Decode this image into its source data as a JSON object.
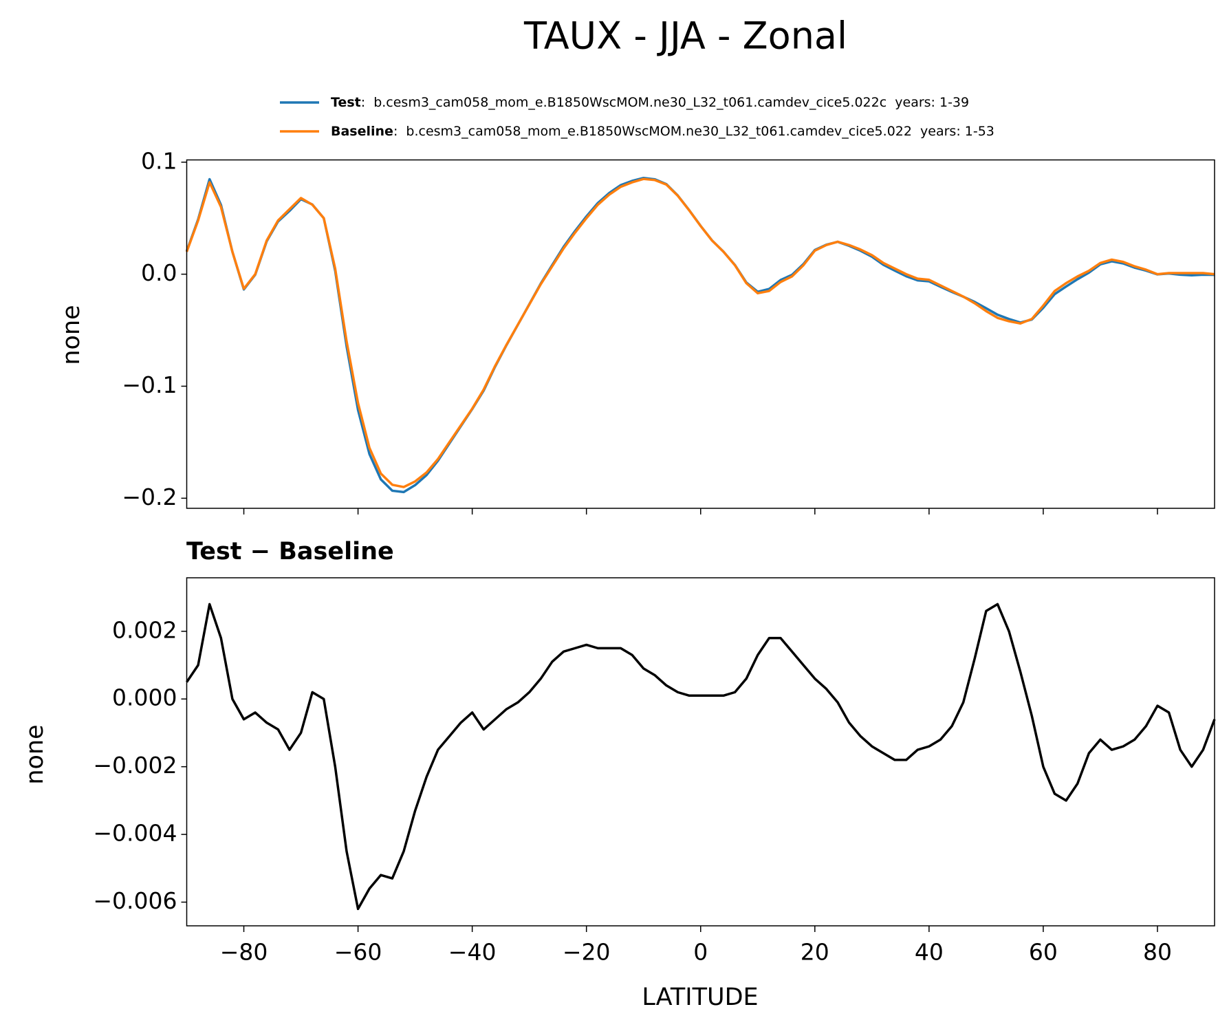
{
  "chart_data": [
    {
      "type": "line",
      "title": "TAUX - JJA - Zonal",
      "ylabel": "none",
      "x": [
        -90,
        -88,
        -86,
        -84,
        -82,
        -80,
        -78,
        -76,
        -74,
        -72,
        -70,
        -68,
        -66,
        -64,
        -62,
        -60,
        -58,
        -56,
        -54,
        -52,
        -50,
        -48,
        -46,
        -44,
        -42,
        -40,
        -38,
        -36,
        -34,
        -32,
        -30,
        -28,
        -26,
        -24,
        -22,
        -20,
        -18,
        -16,
        -14,
        -12,
        -10,
        -8,
        -6,
        -4,
        -2,
        0,
        2,
        4,
        6,
        8,
        10,
        12,
        14,
        16,
        18,
        20,
        22,
        24,
        26,
        28,
        30,
        32,
        34,
        36,
        38,
        40,
        42,
        44,
        46,
        48,
        50,
        52,
        54,
        56,
        58,
        60,
        62,
        64,
        66,
        68,
        70,
        72,
        74,
        76,
        78,
        80,
        82,
        84,
        86,
        88,
        90
      ],
      "series": [
        {
          "name": "Test",
          "info": ":  b.cesm3_cam058_mom_e.B1850WscMOM.ne30_L32_t061.camdev_cice5.022c  years: 1-39",
          "color": "#1f77b4",
          "values": [
            0.0205,
            0.049,
            0.0848,
            0.0618,
            0.02,
            -0.0136,
            -0.0004,
            0.0293,
            0.0471,
            0.0565,
            0.067,
            0.0622,
            0.05,
            0.003,
            -0.0645,
            -0.1212,
            -0.1606,
            -0.1832,
            -0.1933,
            -0.1945,
            -0.1883,
            -0.1793,
            -0.1665,
            -0.1511,
            -0.1357,
            -0.1204,
            -0.1039,
            -0.0826,
            -0.0633,
            -0.0451,
            -0.0268,
            -0.0084,
            0.0081,
            0.0244,
            0.0385,
            0.0516,
            0.0635,
            0.0725,
            0.0795,
            0.0833,
            0.0859,
            0.0847,
            0.0804,
            0.0702,
            0.0571,
            0.0431,
            0.0301,
            0.0201,
            0.0082,
            -0.0074,
            -0.0157,
            -0.0132,
            -0.0052,
            -0.0006,
            0.009,
            0.0216,
            0.0263,
            0.0289,
            0.0253,
            0.0209,
            0.0156,
            0.0084,
            0.0032,
            -0.0018,
            -0.0055,
            -0.0064,
            -0.0112,
            -0.0158,
            -0.0201,
            -0.0248,
            -0.0304,
            -0.0362,
            -0.04,
            -0.0432,
            -0.0405,
            -0.03,
            -0.0178,
            -0.011,
            -0.0045,
            0.0014,
            0.0088,
            0.0115,
            0.0096,
            0.0058,
            0.0032,
            -0.0002,
            0.0006,
            -0.0005,
            -0.001,
            -0.0005,
            -0.0006
          ]
        },
        {
          "name": "Baseline",
          "info": ":  b.cesm3_cam058_mom_e.B1850WscMOM.ne30_L32_t061.camdev_cice5.022  years: 1-53",
          "color": "#ff7f0e",
          "values": [
            0.02,
            0.048,
            0.082,
            0.06,
            0.02,
            -0.013,
            0.0,
            0.03,
            0.048,
            0.058,
            0.068,
            0.062,
            0.05,
            0.005,
            -0.06,
            -0.115,
            -0.155,
            -0.178,
            -0.188,
            -0.19,
            -0.185,
            -0.177,
            -0.165,
            -0.15,
            -0.135,
            -0.12,
            -0.103,
            -0.082,
            -0.063,
            -0.045,
            -0.027,
            -0.009,
            0.007,
            0.023,
            0.037,
            0.05,
            0.062,
            0.071,
            0.078,
            0.082,
            0.085,
            0.084,
            0.08,
            0.07,
            0.057,
            0.043,
            0.03,
            0.02,
            0.008,
            -0.008,
            -0.017,
            -0.015,
            -0.007,
            -0.002,
            0.008,
            0.021,
            0.026,
            0.029,
            0.026,
            0.022,
            0.017,
            0.01,
            0.005,
            0.0,
            -0.004,
            -0.005,
            -0.01,
            -0.015,
            -0.02,
            -0.026,
            -0.033,
            -0.039,
            -0.042,
            -0.044,
            -0.04,
            -0.028,
            -0.015,
            -0.008,
            -0.002,
            0.003,
            0.01,
            0.013,
            0.011,
            0.007,
            0.004,
            0.0,
            0.001,
            0.001,
            0.001,
            0.001,
            0.0
          ]
        }
      ],
      "xlim": [
        -90,
        90
      ],
      "ylim": [
        -0.209,
        0.102
      ],
      "yticks": [
        {
          "value": -0.2,
          "label": "−0.2"
        },
        {
          "value": -0.1,
          "label": "−0.1"
        },
        {
          "value": 0.0,
          "label": "0.0"
        },
        0.1
      ]
    },
    {
      "type": "line",
      "title": "Test − Baseline",
      "ylabel": "none",
      "xlabel": "LATITUDE",
      "x": [
        -90,
        -88,
        -86,
        -84,
        -82,
        -80,
        -78,
        -76,
        -74,
        -72,
        -70,
        -68,
        -66,
        -64,
        -62,
        -60,
        -58,
        -56,
        -54,
        -52,
        -50,
        -48,
        -46,
        -44,
        -42,
        -40,
        -38,
        -36,
        -34,
        -32,
        -30,
        -28,
        -26,
        -24,
        -22,
        -20,
        -18,
        -16,
        -14,
        -12,
        -10,
        -8,
        -6,
        -4,
        -2,
        0,
        2,
        4,
        6,
        8,
        10,
        12,
        14,
        16,
        18,
        20,
        22,
        24,
        26,
        28,
        30,
        32,
        34,
        36,
        38,
        40,
        42,
        44,
        46,
        48,
        50,
        52,
        54,
        56,
        58,
        60,
        62,
        64,
        66,
        68,
        70,
        72,
        74,
        76,
        78,
        80,
        82,
        84,
        86,
        88,
        90
      ],
      "series": [
        {
          "color": "#000000",
          "values": [
            0.0005,
            0.001,
            0.0028,
            0.0018,
            0.0,
            -0.0006,
            -0.0004,
            -0.0007,
            -0.0009,
            -0.0015,
            -0.001,
            0.0002,
            0.0,
            -0.002,
            -0.0045,
            -0.0062,
            -0.0056,
            -0.0052,
            -0.0053,
            -0.0045,
            -0.0033,
            -0.0023,
            -0.0015,
            -0.0011,
            -0.0007,
            -0.0004,
            -0.0009,
            -0.0006,
            -0.0003,
            -0.0001,
            0.0002,
            0.0006,
            0.0011,
            0.0014,
            0.0015,
            0.0016,
            0.0015,
            0.0015,
            0.0015,
            0.0013,
            0.0009,
            0.0007,
            0.0004,
            0.0002,
            0.0001,
            0.0001,
            0.0001,
            0.0001,
            0.0002,
            0.0006,
            0.0013,
            0.0018,
            0.0018,
            0.0014,
            0.001,
            0.0006,
            0.0003,
            -0.0001,
            -0.0007,
            -0.0011,
            -0.0014,
            -0.0016,
            -0.0018,
            -0.0018,
            -0.0015,
            -0.0014,
            -0.0012,
            -0.0008,
            -0.0001,
            0.0012,
            0.0026,
            0.0028,
            0.002,
            0.0008,
            -0.0005,
            -0.002,
            -0.0028,
            -0.003,
            -0.0025,
            -0.0016,
            -0.0012,
            -0.0015,
            -0.0014,
            -0.0012,
            -0.0008,
            -0.0002,
            -0.0004,
            -0.0015,
            -0.002,
            -0.0015,
            -0.0006
          ]
        }
      ],
      "xlim": [
        -90,
        90
      ],
      "ylim": [
        -0.0067,
        0.00358
      ],
      "xticks": [
        {
          "value": -80,
          "label": "−80"
        },
        {
          "value": -60,
          "label": "−60"
        },
        {
          "value": -40,
          "label": "−40"
        },
        {
          "value": -20,
          "label": "−20"
        },
        0,
        20,
        40,
        60,
        80
      ],
      "yticks": [
        {
          "value": -0.006,
          "label": "−0.006"
        },
        {
          "value": -0.004,
          "label": "−0.004"
        },
        {
          "value": -0.002,
          "label": "−0.002"
        },
        {
          "value": 0.0,
          "label": "0.000"
        },
        0.002
      ]
    }
  ]
}
